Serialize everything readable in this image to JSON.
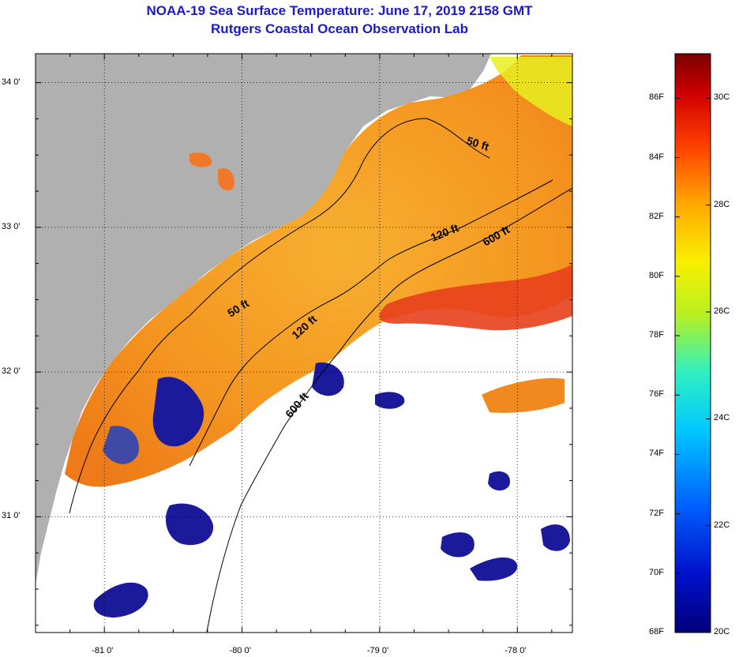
{
  "title": {
    "line1": "NOAA-19 Sea Surface Temperature:  June 17, 2019 2158 GMT",
    "line2": "Rutgers Coastal Ocean Observation Lab"
  },
  "map": {
    "lon_ticks": [
      {
        "value": -81,
        "label": "-81 0'"
      },
      {
        "value": -80,
        "label": "-80 0'"
      },
      {
        "value": -79,
        "label": "-79 0'"
      },
      {
        "value": -78,
        "label": "-78 0'"
      }
    ],
    "lat_ticks": [
      {
        "value": 34,
        "label": "34 0'"
      },
      {
        "value": 33,
        "label": "33 0'"
      },
      {
        "value": 32,
        "label": "32 0'"
      },
      {
        "value": 31,
        "label": "31 0'"
      }
    ],
    "lon_range": [
      -81.5,
      -77.6
    ],
    "lat_range": [
      30.2,
      34.2
    ],
    "depth_labels": [
      "50 ft",
      "120 ft",
      "600 ft",
      "50 ft",
      "120 ft",
      "600 ft"
    ],
    "colors": {
      "land": "#b0b0b0",
      "cloud": "#ffffff",
      "warm": "#f5a020",
      "hot": "#e8301a",
      "cool": "#1a1a9a"
    }
  },
  "colorbar": {
    "range_f": [
      68,
      87.5
    ],
    "fahrenheit": [
      {
        "value": 68,
        "label": "68F"
      },
      {
        "value": 70,
        "label": "70F"
      },
      {
        "value": 72,
        "label": "72F"
      },
      {
        "value": 74,
        "label": "74F"
      },
      {
        "value": 76,
        "label": "76F"
      },
      {
        "value": 78,
        "label": "78F"
      },
      {
        "value": 80,
        "label": "80F"
      },
      {
        "value": 82,
        "label": "82F"
      },
      {
        "value": 84,
        "label": "84F"
      },
      {
        "value": 86,
        "label": "86F"
      }
    ],
    "celsius": [
      {
        "value": 20,
        "label": "20C"
      },
      {
        "value": 22,
        "label": "22C"
      },
      {
        "value": 24,
        "label": "24C"
      },
      {
        "value": 26,
        "label": "26C"
      },
      {
        "value": 28,
        "label": "28C"
      },
      {
        "value": 30,
        "label": "30C"
      }
    ]
  }
}
